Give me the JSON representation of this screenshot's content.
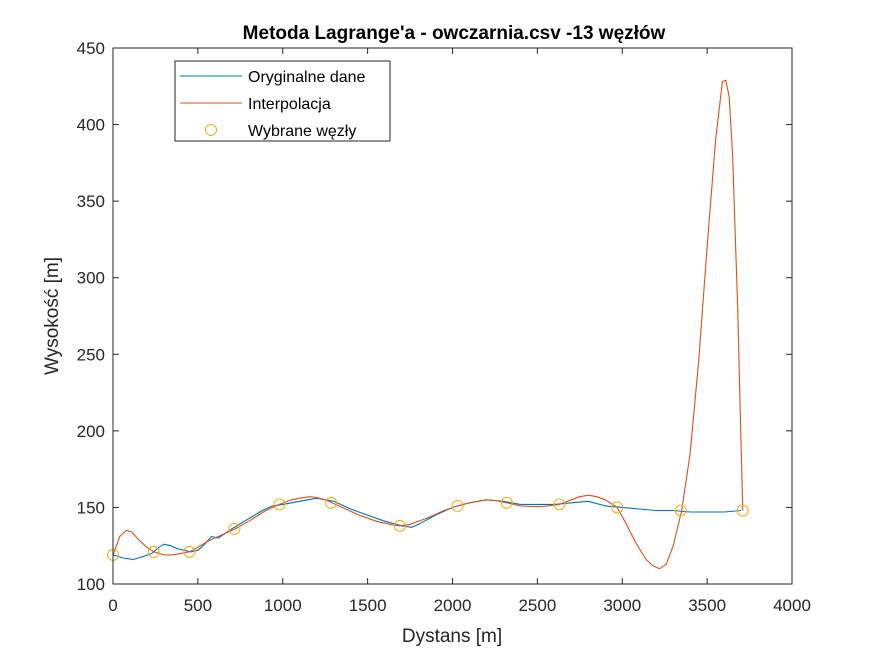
{
  "chart_data": {
    "type": "line",
    "title": "Metoda Lagrange'a - owczarnia.csv -13 węzłów",
    "xlabel": "Dystans [m]",
    "ylabel": "Wysokość [m]",
    "xlim": [
      0,
      4000
    ],
    "ylim": [
      100,
      450
    ],
    "xticks": [
      "0",
      "500",
      "1000",
      "1500",
      "2000",
      "2500",
      "3000",
      "3500",
      "4000"
    ],
    "yticks": [
      "100",
      "150",
      "200",
      "250",
      "300",
      "350",
      "400",
      "450"
    ],
    "grid": false,
    "legend_position": "top-left",
    "series": [
      {
        "name": "Oryginalne dane",
        "kind": "line",
        "color": "#0072BD",
        "x": [
          0,
          60,
          120,
          180,
          230,
          270,
          300,
          340,
          380,
          420,
          460,
          500,
          540,
          580,
          620,
          660,
          700,
          760,
          820,
          880,
          940,
          1000,
          1100,
          1200,
          1300,
          1400,
          1500,
          1600,
          1700,
          1760,
          1800,
          1900,
          2000,
          2100,
          2200,
          2300,
          2400,
          2500,
          2600,
          2700,
          2800,
          2900,
          3000,
          3100,
          3200,
          3300,
          3400,
          3500,
          3600,
          3700
        ],
        "y": [
          119,
          117,
          116,
          118,
          120,
          124,
          126,
          125,
          123,
          122,
          121,
          122,
          126,
          131,
          130,
          133,
          136,
          140,
          144,
          148,
          151,
          152,
          154,
          156,
          154,
          149,
          145,
          141,
          138,
          137,
          139,
          145,
          150,
          153,
          155,
          154,
          152,
          152,
          152,
          153,
          154,
          151,
          150,
          149,
          148,
          148,
          147,
          147,
          147,
          148
        ]
      },
      {
        "name": "Interpolacja",
        "kind": "line",
        "color": "#D95319",
        "x": [
          0,
          40,
          80,
          110,
          150,
          200,
          240,
          300,
          350,
          400,
          450,
          500,
          560,
          620,
          720,
          800,
          900,
          980,
          1050,
          1100,
          1160,
          1200,
          1250,
          1290,
          1350,
          1450,
          1550,
          1650,
          1690,
          1750,
          1850,
          1950,
          2030,
          2100,
          2200,
          2250,
          2320,
          2400,
          2500,
          2560,
          2630,
          2700,
          2750,
          2800,
          2850,
          2900,
          2970,
          3020,
          3080,
          3140,
          3180,
          3220,
          3260,
          3300,
          3350,
          3400,
          3450,
          3500,
          3550,
          3590,
          3610,
          3630,
          3650,
          3680,
          3700,
          3710
        ],
        "y": [
          119,
          131,
          135,
          134,
          129,
          124,
          121,
          119,
          119,
          120,
          121,
          124,
          128,
          131,
          136,
          141,
          148,
          152,
          155,
          156,
          157,
          156.5,
          155,
          153,
          150,
          145,
          141,
          138.5,
          138,
          139,
          143,
          148,
          151,
          153,
          155,
          154.5,
          153,
          151,
          150.5,
          151,
          152,
          155,
          157,
          158,
          157,
          155,
          150,
          140,
          127,
          116,
          112,
          110,
          113,
          125,
          148,
          185,
          245,
          320,
          390,
          428,
          429,
          418,
          380,
          280,
          190,
          148
        ]
      },
      {
        "name": "Wybrane węzły",
        "kind": "scatter",
        "marker": "circle",
        "color": "#EDB120",
        "x": [
          0,
          240,
          450,
          715,
          980,
          1285,
          1690,
          2030,
          2320,
          2630,
          2970,
          3345,
          3710
        ],
        "y": [
          119,
          121,
          121,
          136,
          152,
          153,
          138,
          151,
          153,
          152,
          150,
          148,
          148
        ]
      }
    ]
  }
}
